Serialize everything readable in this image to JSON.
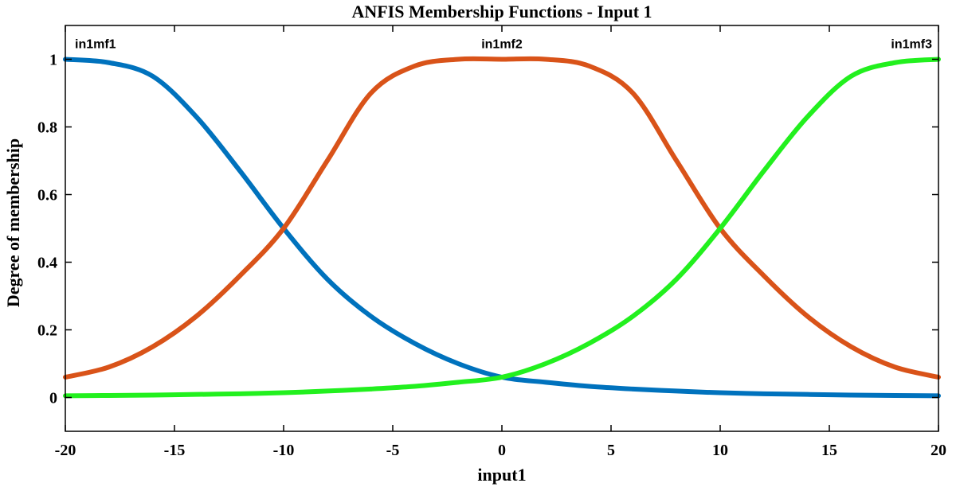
{
  "chart_data": {
    "type": "line",
    "title": "ANFIS Membership Functions - Input 1",
    "xlabel": "input1",
    "ylabel": "Degree of membership",
    "xlim": [
      -20,
      20
    ],
    "ylim": [
      -0.1,
      1.1
    ],
    "xticks": [
      -20,
      -15,
      -10,
      -5,
      0,
      5,
      10,
      15,
      20
    ],
    "yticks": [
      0,
      0.2,
      0.4,
      0.6,
      0.8,
      1
    ],
    "ytick_labels": [
      "0",
      "0.2",
      "0.4",
      "0.6",
      "0.8",
      "1"
    ],
    "grid": false,
    "series": [
      {
        "name": "in1mf1",
        "color": "#0072BD",
        "x": [
          -20,
          -18,
          -16,
          -14,
          -12,
          -10,
          -8,
          -6,
          -4,
          -2,
          0,
          2,
          4,
          6,
          8,
          10,
          12,
          14,
          16,
          18,
          20
        ],
        "y": [
          1.0,
          0.99,
          0.95,
          0.83,
          0.67,
          0.5,
          0.35,
          0.24,
          0.16,
          0.1,
          0.06,
          0.045,
          0.033,
          0.025,
          0.019,
          0.014,
          0.011,
          0.009,
          0.007,
          0.006,
          0.005
        ],
        "label": "in1mf1"
      },
      {
        "name": "in1mf2",
        "color": "#D95319",
        "x": [
          -20,
          -18,
          -16,
          -14,
          -12,
          -10,
          -8,
          -6,
          -4,
          -2,
          0,
          2,
          4,
          6,
          8,
          10,
          12,
          14,
          16,
          18,
          20
        ],
        "y": [
          0.06,
          0.09,
          0.15,
          0.24,
          0.36,
          0.5,
          0.7,
          0.9,
          0.98,
          1.0,
          1.0,
          1.0,
          0.98,
          0.9,
          0.7,
          0.5,
          0.36,
          0.24,
          0.15,
          0.09,
          0.06
        ],
        "label": "in1mf2"
      },
      {
        "name": "in1mf3",
        "color": "#22F01E",
        "x": [
          -20,
          -18,
          -16,
          -14,
          -12,
          -10,
          -8,
          -6,
          -4,
          -2,
          0,
          2,
          4,
          6,
          8,
          10,
          12,
          14,
          16,
          18,
          20
        ],
        "y": [
          0.005,
          0.006,
          0.007,
          0.009,
          0.011,
          0.014,
          0.019,
          0.025,
          0.033,
          0.045,
          0.06,
          0.1,
          0.16,
          0.24,
          0.35,
          0.5,
          0.67,
          0.83,
          0.95,
          0.99,
          1.0
        ],
        "label": "in1mf3"
      }
    ]
  }
}
